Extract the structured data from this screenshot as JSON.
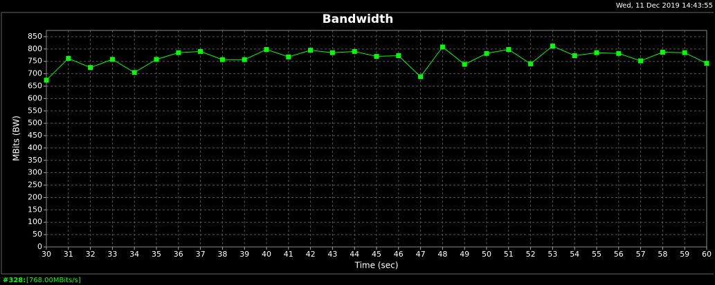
{
  "timestamp": "Wed, 11 Dec 2019 14:43:55",
  "status": {
    "id": "#328:",
    "reading": "[768.00MBits/s]"
  },
  "chart_data": {
    "type": "line",
    "title": "Bandwidth",
    "x_label": "Time (sec)",
    "y_label": "MBits (BW)",
    "x": [
      30,
      31,
      32,
      33,
      34,
      35,
      36,
      37,
      38,
      39,
      40,
      41,
      42,
      43,
      44,
      45,
      46,
      47,
      48,
      49,
      50,
      51,
      52,
      53,
      54,
      55,
      56,
      57,
      58,
      59,
      60
    ],
    "series": [
      {
        "name": "Bandwidth",
        "color": "#00ff00",
        "values": [
          674,
          762,
          725,
          758,
          705,
          758,
          785,
          790,
          757,
          757,
          798,
          768,
          795,
          785,
          790,
          770,
          773,
          688,
          808,
          738,
          782,
          798,
          740,
          812,
          773,
          785,
          782,
          752,
          787,
          785,
          742
        ]
      }
    ],
    "xlim": [
      30,
      60
    ],
    "xticks": [
      30,
      31,
      32,
      33,
      34,
      35,
      36,
      37,
      38,
      39,
      40,
      41,
      42,
      43,
      44,
      45,
      46,
      47,
      48,
      49,
      50,
      51,
      52,
      53,
      54,
      55,
      56,
      57,
      58,
      59,
      60
    ],
    "ylim": [
      0,
      875
    ],
    "yticks": [
      0,
      50,
      100,
      150,
      200,
      250,
      300,
      350,
      400,
      450,
      500,
      550,
      600,
      650,
      700,
      750,
      800,
      850
    ],
    "grid": true
  }
}
